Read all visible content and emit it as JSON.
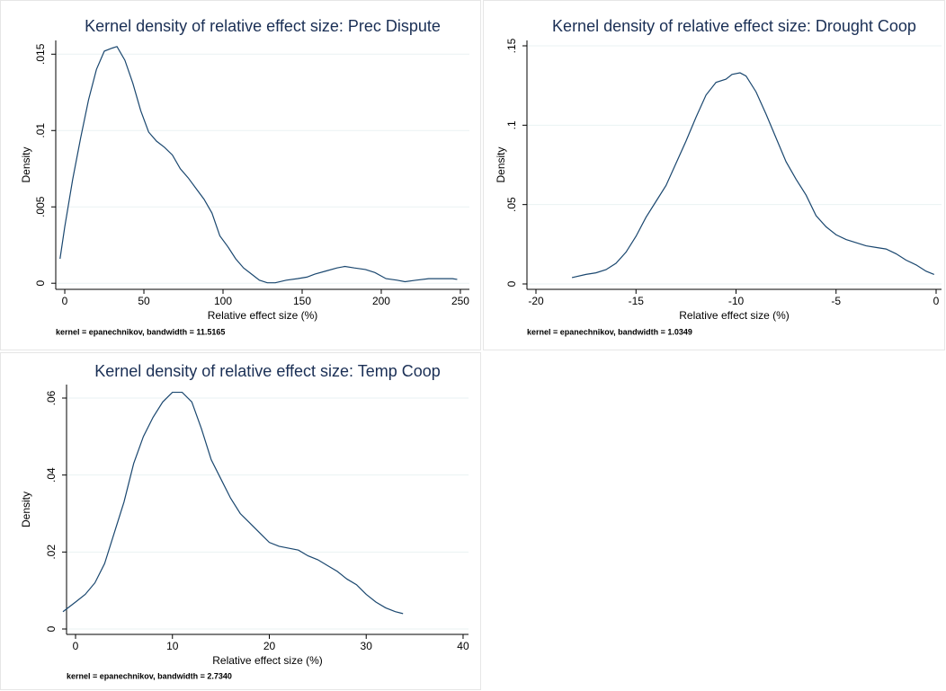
{
  "chart_data": [
    {
      "type": "line",
      "title": "Kernel density of relative effect size: Prec Dispute",
      "x_label": "Relative effect size (%)",
      "y_label": "Density",
      "note": "kernel = epanechnikov, bandwidth = 11.5165",
      "color": "#1a476f",
      "grid": true,
      "xlim": [
        -5.7,
        255.7
      ],
      "ylim": [
        -0.0004,
        0.0159
      ],
      "xticks": [
        0,
        50,
        100,
        150,
        200,
        250
      ],
      "yticks": [
        0,
        {
          "value": 0.005,
          "label": ".005"
        },
        {
          "value": 0.01,
          "label": ".01"
        },
        {
          "value": 0.015,
          "label": ".015"
        }
      ],
      "x": [
        -3,
        0,
        5,
        10,
        15,
        20,
        25,
        30,
        33,
        38,
        43,
        48,
        53,
        58,
        63,
        68,
        73,
        78,
        83,
        88,
        93,
        98,
        103,
        108,
        113,
        118,
        123,
        128,
        133,
        140,
        147,
        153,
        158,
        165,
        172,
        177,
        183,
        190,
        196,
        203,
        210,
        215,
        222,
        230,
        238,
        245,
        248
      ],
      "values": [
        0.0016,
        0.0037,
        0.0068,
        0.0095,
        0.012,
        0.014,
        0.0152,
        0.0154,
        0.0155,
        0.0146,
        0.0131,
        0.0113,
        0.0099,
        0.0093,
        0.0089,
        0.0084,
        0.0075,
        0.0069,
        0.0062,
        0.0055,
        0.0046,
        0.0031,
        0.0024,
        0.0016,
        0.001,
        0.0006,
        0.0002,
        3e-05,
        3e-05,
        0.0002,
        0.0003,
        0.0004,
        0.0006,
        0.0008,
        0.001,
        0.0011,
        0.001,
        0.0009,
        0.0007,
        0.0003,
        0.0002,
        0.0001,
        0.0002,
        0.0003,
        0.0003,
        0.0003,
        0.00025
      ]
    },
    {
      "type": "line",
      "title": "Kernel density of relative effect size: Drought Coop",
      "x_label": "Relative effect size (%)",
      "y_label": "Density",
      "note": "kernel = epanechnikov, bandwidth = 1.0349",
      "color": "#1a476f",
      "grid": true,
      "xlim": [
        -20.45,
        0.27
      ],
      "ylim": [
        -0.0034,
        0.1534
      ],
      "xticks": [
        -20,
        -15,
        -10,
        -5,
        0
      ],
      "yticks": [
        0,
        {
          "value": 0.05,
          "label": ".05"
        },
        {
          "value": 0.1,
          "label": ".1"
        },
        {
          "value": 0.15,
          "label": ".15"
        }
      ],
      "x": [
        -18.2,
        -17.5,
        -17,
        -16.5,
        -16,
        -15.5,
        -15,
        -14.5,
        -14,
        -13.5,
        -13,
        -12.5,
        -12,
        -11.5,
        -11,
        -10.5,
        -10.2,
        -9.8,
        -9.5,
        -9,
        -8.5,
        -8,
        -7.5,
        -7,
        -6.5,
        -6,
        -5.5,
        -5,
        -4.5,
        -4,
        -3.5,
        -3,
        -2.5,
        -2,
        -1.5,
        -1,
        -0.5,
        -0.1
      ],
      "values": [
        0.004,
        0.006,
        0.007,
        0.009,
        0.013,
        0.02,
        0.03,
        0.042,
        0.052,
        0.062,
        0.076,
        0.09,
        0.105,
        0.119,
        0.127,
        0.129,
        0.132,
        0.133,
        0.131,
        0.121,
        0.107,
        0.092,
        0.077,
        0.066,
        0.056,
        0.043,
        0.036,
        0.031,
        0.028,
        0.026,
        0.024,
        0.023,
        0.022,
        0.019,
        0.015,
        0.012,
        0.008,
        0.006
      ]
    },
    {
      "type": "line",
      "title": "Kernel density of relative effect size: Temp Coop",
      "x_label": "Relative effect size (%)",
      "y_label": "Density",
      "note": "kernel = epanechnikov, bandwidth = 2.7340",
      "color": "#1a476f",
      "grid": true,
      "xlim": [
        -0.93,
        40.56
      ],
      "ylim": [
        -0.0014,
        0.0635
      ],
      "xticks": [
        0,
        10,
        20,
        30,
        40
      ],
      "yticks": [
        0,
        {
          "value": 0.02,
          "label": ".02"
        },
        {
          "value": 0.04,
          "label": ".04"
        },
        {
          "value": 0.06,
          "label": ".06"
        }
      ],
      "x": [
        -1.3,
        0,
        1,
        2,
        3,
        4,
        5,
        6,
        7,
        8,
        9,
        10,
        11,
        12,
        13,
        14,
        15,
        16,
        17,
        18,
        19,
        20,
        21,
        22,
        23,
        24,
        25,
        26,
        27,
        28,
        29,
        30,
        31,
        32,
        33,
        33.8
      ],
      "values": [
        0.0045,
        0.007,
        0.009,
        0.012,
        0.017,
        0.025,
        0.033,
        0.043,
        0.05,
        0.055,
        0.059,
        0.0615,
        0.0615,
        0.059,
        0.052,
        0.044,
        0.039,
        0.034,
        0.03,
        0.0275,
        0.025,
        0.0225,
        0.0215,
        0.021,
        0.0205,
        0.019,
        0.018,
        0.0165,
        0.015,
        0.013,
        0.0115,
        0.009,
        0.007,
        0.0055,
        0.0045,
        0.004
      ]
    }
  ]
}
